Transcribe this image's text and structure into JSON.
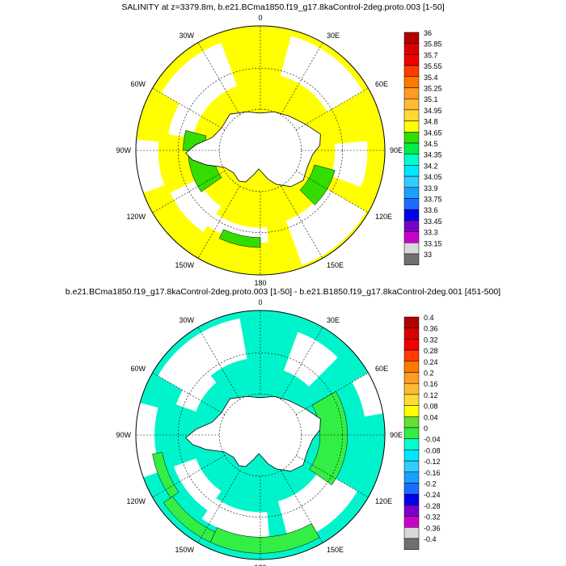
{
  "panels": [
    {
      "title": "SALINITY at z=3379.8m, b.e21.BCma1850.f19_g17.8kaControl-2deg.proto.003 [1-50]",
      "region_colors": {
        "ocean": "#ffff00",
        "land": "#ffffff",
        "shelf_band": "#33dd00"
      },
      "colorbar": {
        "labels": [
          "36",
          "35.85",
          "35.7",
          "35.55",
          "35.4",
          "35.25",
          "35.1",
          "34.95",
          "34.8",
          "34.65",
          "34.5",
          "34.35",
          "34.2",
          "34.05",
          "33.9",
          "33.75",
          "33.6",
          "33.45",
          "33.3",
          "33.15",
          "33"
        ],
        "colors": [
          "#b40000",
          "#d80000",
          "#f00000",
          "#ff3c00",
          "#ff7800",
          "#ff9a26",
          "#ffbb33",
          "#ffda33",
          "#ffff00",
          "#33dd00",
          "#00ee44",
          "#00ffcc",
          "#00e6ff",
          "#33ccff",
          "#1a9fff",
          "#1e6cff",
          "#0000ee",
          "#7a00cc",
          "#cc00cc",
          "#d8d8d8",
          "#707070"
        ]
      }
    },
    {
      "title": "b.e21.BCma1850.f19_g17.8kaControl-2deg.proto.003 [1-50] - b.e21.B1850.f19_g17.8kaControl-2deg.001 [451-500]",
      "region_colors": {
        "ocean": "#00f4cc",
        "land": "#ffffff",
        "shelf_band": "#33ee44"
      },
      "colorbar": {
        "labels": [
          "0.4",
          "0.36",
          "0.32",
          "0.28",
          "0.24",
          "0.2",
          "0.16",
          "0.12",
          "0.08",
          "0.04",
          "0",
          "-0.04",
          "-0.08",
          "-0.12",
          "-0.16",
          "-0.2",
          "-0.24",
          "-0.28",
          "-0.32",
          "-0.36",
          "-0.4"
        ],
        "colors": [
          "#b40000",
          "#d80000",
          "#f00000",
          "#ff3c00",
          "#ff7800",
          "#ff9a26",
          "#ffbb33",
          "#ffda33",
          "#ffff00",
          "#66dd33",
          "#33ee44",
          "#00ffcc",
          "#00e6ff",
          "#33ccff",
          "#1a9fff",
          "#1e6cff",
          "#0000ee",
          "#7a00cc",
          "#cc00cc",
          "#d8d8d8",
          "#707070"
        ]
      }
    }
  ],
  "lon_labels": [
    "0",
    "30E",
    "60E",
    "90E",
    "120E",
    "150E",
    "180",
    "150W",
    "120W",
    "90W",
    "60W",
    "30W"
  ]
}
